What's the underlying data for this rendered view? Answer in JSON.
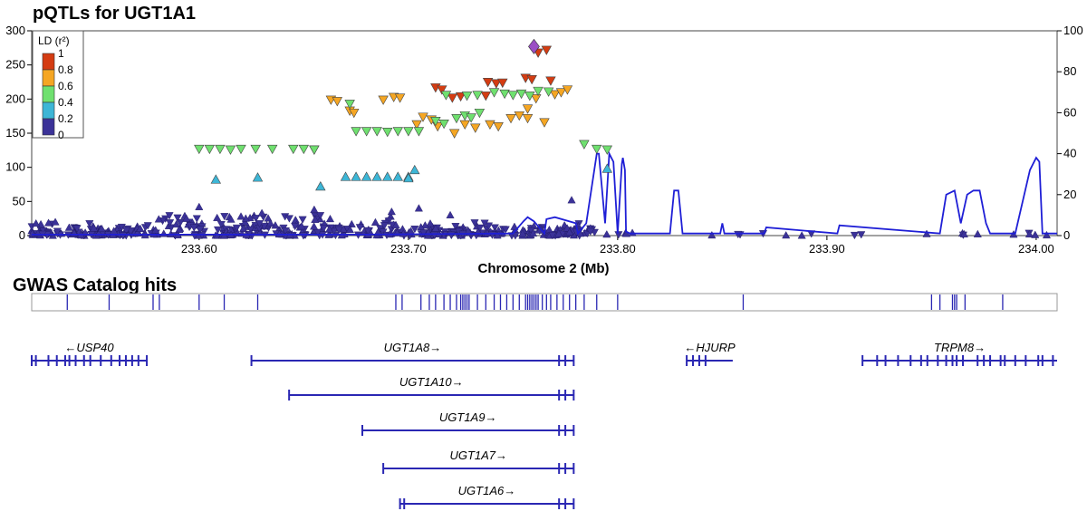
{
  "chart_data": [
    {
      "type": "scatter",
      "title": "pQTLs for UGT1A1",
      "xlabel": "Chromosome 2 (Mb)",
      "xlim": [
        233.52,
        234.01
      ],
      "ylim": [
        0,
        300
      ],
      "y2lim": [
        0,
        100
      ],
      "yticks": [
        0,
        50,
        100,
        150,
        200,
        250,
        300
      ],
      "y2ticks": [
        0,
        20,
        40,
        60,
        80,
        100
      ],
      "xticks": [
        233.6,
        233.7,
        233.8,
        233.9,
        234.0
      ],
      "xtick_labels": [
        "233.60",
        "233.70",
        "233.80",
        "233.90",
        "234.00"
      ],
      "legend": {
        "title": "LD (r²)",
        "position": "top-left",
        "labels": [
          "1",
          "0.8",
          "0.6",
          "0.4",
          "0.2",
          "0"
        ],
        "colors": [
          "#d43c12",
          "#f5a623",
          "#6fe06f",
          "#3db6d6",
          "#3b3298"
        ]
      },
      "lead_snp": {
        "x": 233.76,
        "y": 277,
        "color": "#9b4fc4",
        "shape": "diamond"
      },
      "groups": [
        {
          "ld": "0.8-1",
          "color": "#d43c12",
          "shape": "down",
          "points": [
            [
              233.713,
              217
            ],
            [
              233.716,
              214
            ],
            [
              233.721,
              202
            ],
            [
              233.738,
              225
            ],
            [
              233.742,
              223
            ],
            [
              233.745,
              224
            ],
            [
              233.756,
              231
            ],
            [
              233.759,
              229
            ],
            [
              233.768,
              227
            ],
            [
              233.762,
              268
            ],
            [
              233.766,
              272
            ],
            [
              233.737,
              205
            ],
            [
              233.725,
              204
            ]
          ]
        },
        {
          "ld": "0.6-0.8",
          "color": "#f5a623",
          "shape": "down",
          "points": [
            [
              233.663,
              199
            ],
            [
              233.666,
              197
            ],
            [
              233.672,
              183
            ],
            [
              233.674,
              180
            ],
            [
              233.688,
              199
            ],
            [
              233.693,
              203
            ],
            [
              233.696,
              202
            ],
            [
              233.707,
              174
            ],
            [
              233.711,
              170
            ],
            [
              233.727,
              163
            ],
            [
              233.739,
              163
            ],
            [
              233.749,
              172
            ],
            [
              233.753,
              176
            ],
            [
              233.743,
              160
            ],
            [
              233.732,
              158
            ],
            [
              233.722,
              150
            ],
            [
              233.714,
              160
            ],
            [
              233.704,
              163
            ],
            [
              233.757,
              186
            ],
            [
              233.761,
              201
            ],
            [
              233.77,
              207
            ],
            [
              233.773,
              210
            ],
            [
              233.776,
              214
            ],
            [
              233.765,
              166
            ],
            [
              233.757,
              172
            ]
          ]
        },
        {
          "ld": "0.4-0.6",
          "color": "#6fe06f",
          "shape": "down",
          "points": [
            [
              233.6,
              127
            ],
            [
              233.605,
              127
            ],
            [
              233.61,
              127
            ],
            [
              233.615,
              126
            ],
            [
              233.62,
              127
            ],
            [
              233.627,
              127
            ],
            [
              233.635,
              127
            ],
            [
              233.645,
              127
            ],
            [
              233.65,
              127
            ],
            [
              233.655,
              126
            ],
            [
              233.675,
              153
            ],
            [
              233.68,
              153
            ],
            [
              233.685,
              153
            ],
            [
              233.69,
              152
            ],
            [
              233.695,
              153
            ],
            [
              233.7,
              153
            ],
            [
              233.705,
              153
            ],
            [
              233.713,
              168
            ],
            [
              233.717,
              164
            ],
            [
              233.723,
              172
            ],
            [
              233.727,
              176
            ],
            [
              233.73,
              173
            ],
            [
              233.734,
              180
            ],
            [
              233.728,
              205
            ],
            [
              233.733,
              206
            ],
            [
              233.746,
              208
            ],
            [
              233.75,
              206
            ],
            [
              233.754,
              208
            ],
            [
              233.758,
              205
            ],
            [
              233.762,
              212
            ],
            [
              233.767,
              211
            ],
            [
              233.672,
              193
            ],
            [
              233.655,
              126
            ],
            [
              233.784,
              134
            ],
            [
              233.79,
              127
            ],
            [
              233.795,
              126
            ],
            [
              233.741,
              210
            ],
            [
              233.718,
              206
            ]
          ]
        },
        {
          "ld": "0.2-0.4",
          "color": "#3db6d6",
          "shape": "up",
          "points": [
            [
              233.608,
              82
            ],
            [
              233.628,
              85
            ],
            [
              233.658,
              72
            ],
            [
              233.67,
              86
            ],
            [
              233.675,
              86
            ],
            [
              233.68,
              86
            ],
            [
              233.685,
              86
            ],
            [
              233.69,
              86
            ],
            [
              233.695,
              86
            ],
            [
              233.7,
              86
            ],
            [
              233.703,
              96
            ],
            [
              233.7,
              84
            ],
            [
              233.795,
              98
            ]
          ]
        }
      ],
      "low_ld_note": "dense background of r² 0-0.2 variants near y 0-30 across the region",
      "recombination_rate": {
        "axis": "right",
        "x": [
          233.52,
          233.68,
          233.75,
          233.755,
          233.757,
          233.76,
          233.765,
          233.766,
          233.77,
          233.78,
          233.781,
          233.785,
          233.79,
          233.791,
          233.794,
          233.796,
          233.798,
          233.8,
          233.802,
          233.8025,
          233.8035,
          233.804,
          233.806,
          233.825,
          233.827,
          233.829,
          233.831,
          233.849,
          233.85,
          233.851,
          233.87,
          233.871,
          233.905,
          233.906,
          233.954,
          233.957,
          233.961,
          233.964,
          233.967,
          233.97,
          233.973,
          233.976,
          233.978,
          233.99,
          233.997,
          234.0,
          234.0015,
          234.003,
          234.01
        ],
        "y": [
          0.5,
          0.5,
          1,
          7,
          9,
          7,
          1,
          8,
          9,
          6,
          1,
          6,
          40,
          40,
          6,
          40,
          36,
          1,
          35,
          38,
          32,
          2,
          1,
          1,
          22,
          22,
          1,
          1,
          6,
          1,
          1,
          4,
          1,
          5,
          1,
          20,
          22,
          6,
          20,
          22,
          22,
          6,
          1,
          1,
          32,
          38,
          36,
          1,
          1
        ],
        "color": "#1f1fd6"
      }
    },
    {
      "type": "table",
      "title": "GWAS Catalog hits",
      "xlim": [
        233.52,
        234.01
      ],
      "hits": [
        233.537,
        233.557,
        233.578,
        233.581,
        233.6,
        233.612,
        233.628,
        233.694,
        233.697,
        233.706,
        233.71,
        233.713,
        233.717,
        233.72,
        233.723,
        233.725,
        233.726,
        233.727,
        233.728,
        233.729,
        233.733,
        233.737,
        233.741,
        233.744,
        233.747,
        233.75,
        233.753,
        233.756,
        233.757,
        233.758,
        233.759,
        233.76,
        233.761,
        233.762,
        233.764,
        233.766,
        233.768,
        233.771,
        233.774,
        233.777,
        233.78,
        233.784,
        233.79,
        233.8,
        233.86,
        233.95,
        233.954,
        233.96,
        233.961,
        233.962,
        233.966,
        233.984
      ]
    }
  ],
  "genes": [
    {
      "name": "←USP40",
      "start": 233.52,
      "end": 233.575,
      "row": 0,
      "exons": [
        233.52,
        233.522,
        233.528,
        233.532,
        233.536,
        233.538,
        233.541,
        233.545,
        233.548,
        233.553,
        233.558,
        233.562,
        233.565,
        233.568,
        233.571,
        233.575
      ]
    },
    {
      "name": "UGT1A8→",
      "start": 233.625,
      "end": 233.779,
      "row": 0,
      "exons": [
        233.625,
        233.772,
        233.775,
        233.779
      ]
    },
    {
      "name": "←HJURP",
      "start": 233.833,
      "end": 233.855,
      "row": 0,
      "exons": [
        233.833,
        233.836,
        233.839,
        233.842
      ]
    },
    {
      "name": "TRPM8→",
      "start": 233.917,
      "end": 234.01,
      "row": 0,
      "exons": [
        233.917,
        233.924,
        233.928,
        233.934,
        233.94,
        233.945,
        233.948,
        233.953,
        233.957,
        233.96,
        233.962,
        233.965,
        233.972,
        233.975,
        233.978,
        233.983,
        233.985,
        233.99,
        233.995,
        234.001,
        234.003,
        234.008
      ]
    },
    {
      "name": "UGT1A10→",
      "start": 233.643,
      "end": 233.779,
      "row": 1,
      "exons": [
        233.643,
        233.772,
        233.775,
        233.779
      ]
    },
    {
      "name": "UGT1A9→",
      "start": 233.678,
      "end": 233.779,
      "row": 2,
      "exons": [
        233.678,
        233.772,
        233.775,
        233.779
      ]
    },
    {
      "name": "UGT1A7→",
      "start": 233.688,
      "end": 233.779,
      "row": 3,
      "exons": [
        233.688,
        233.772,
        233.775,
        233.779
      ]
    },
    {
      "name": "UGT1A6→",
      "start": 233.696,
      "end": 233.779,
      "row": 4,
      "exons": [
        233.696,
        233.698,
        233.772,
        233.775,
        233.779
      ]
    }
  ]
}
